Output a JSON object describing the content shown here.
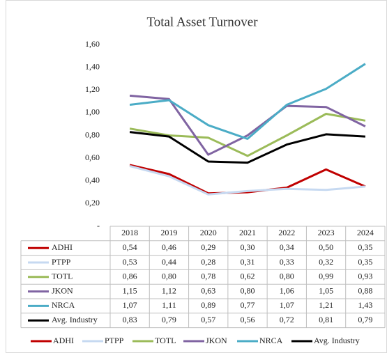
{
  "chart_data": {
    "type": "line",
    "title": "Total Asset Turnover",
    "categories": [
      "2018",
      "2019",
      "2020",
      "2021",
      "2022",
      "2023",
      "2024"
    ],
    "ylim": [
      0,
      1.6
    ],
    "yticks": [
      {
        "value": 0,
        "label": "-"
      },
      {
        "value": 0.2,
        "label": "0,20"
      },
      {
        "value": 0.4,
        "label": "0,40"
      },
      {
        "value": 0.6,
        "label": "0,60"
      },
      {
        "value": 0.8,
        "label": "0,80"
      },
      {
        "value": 1.0,
        "label": "1,00"
      },
      {
        "value": 1.2,
        "label": "1,20"
      },
      {
        "value": 1.4,
        "label": "1,40"
      },
      {
        "value": 1.6,
        "label": "1,60"
      }
    ],
    "grid": false,
    "series": [
      {
        "name": "ADHI",
        "color": "#c00000",
        "values": [
          0.54,
          0.46,
          0.29,
          0.3,
          0.34,
          0.5,
          0.35
        ],
        "value_labels": [
          "0,54",
          "0,46",
          "0,29",
          "0,30",
          "0,34",
          "0,50",
          "0,35"
        ]
      },
      {
        "name": "PTPP",
        "color": "#c6d9f1",
        "values": [
          0.53,
          0.44,
          0.28,
          0.31,
          0.33,
          0.32,
          0.35
        ],
        "value_labels": [
          "0,53",
          "0,44",
          "0,28",
          "0,31",
          "0,33",
          "0,32",
          "0,35"
        ]
      },
      {
        "name": "TOTL",
        "color": "#9bbb59",
        "values": [
          0.86,
          0.8,
          0.78,
          0.62,
          0.8,
          0.99,
          0.93
        ],
        "value_labels": [
          "0,86",
          "0,80",
          "0,78",
          "0,62",
          "0,80",
          "0,99",
          "0,93"
        ]
      },
      {
        "name": "JKON",
        "color": "#8064a2",
        "values": [
          1.15,
          1.12,
          0.63,
          0.8,
          1.06,
          1.05,
          0.88
        ],
        "value_labels": [
          "1,15",
          "1,12",
          "0,63",
          "0,80",
          "1,06",
          "1,05",
          "0,88"
        ]
      },
      {
        "name": "NRCA",
        "color": "#4bacc6",
        "values": [
          1.07,
          1.11,
          0.89,
          0.77,
          1.07,
          1.21,
          1.43
        ],
        "value_labels": [
          "1,07",
          "1,11",
          "0,89",
          "0,77",
          "1,07",
          "1,21",
          "1,43"
        ]
      },
      {
        "name": "Avg. Industry",
        "color": "#000000",
        "values": [
          0.83,
          0.79,
          0.57,
          0.56,
          0.72,
          0.81,
          0.79
        ],
        "value_labels": [
          "0,83",
          "0,79",
          "0,57",
          "0,56",
          "0,72",
          "0,81",
          "0,79"
        ]
      }
    ]
  }
}
